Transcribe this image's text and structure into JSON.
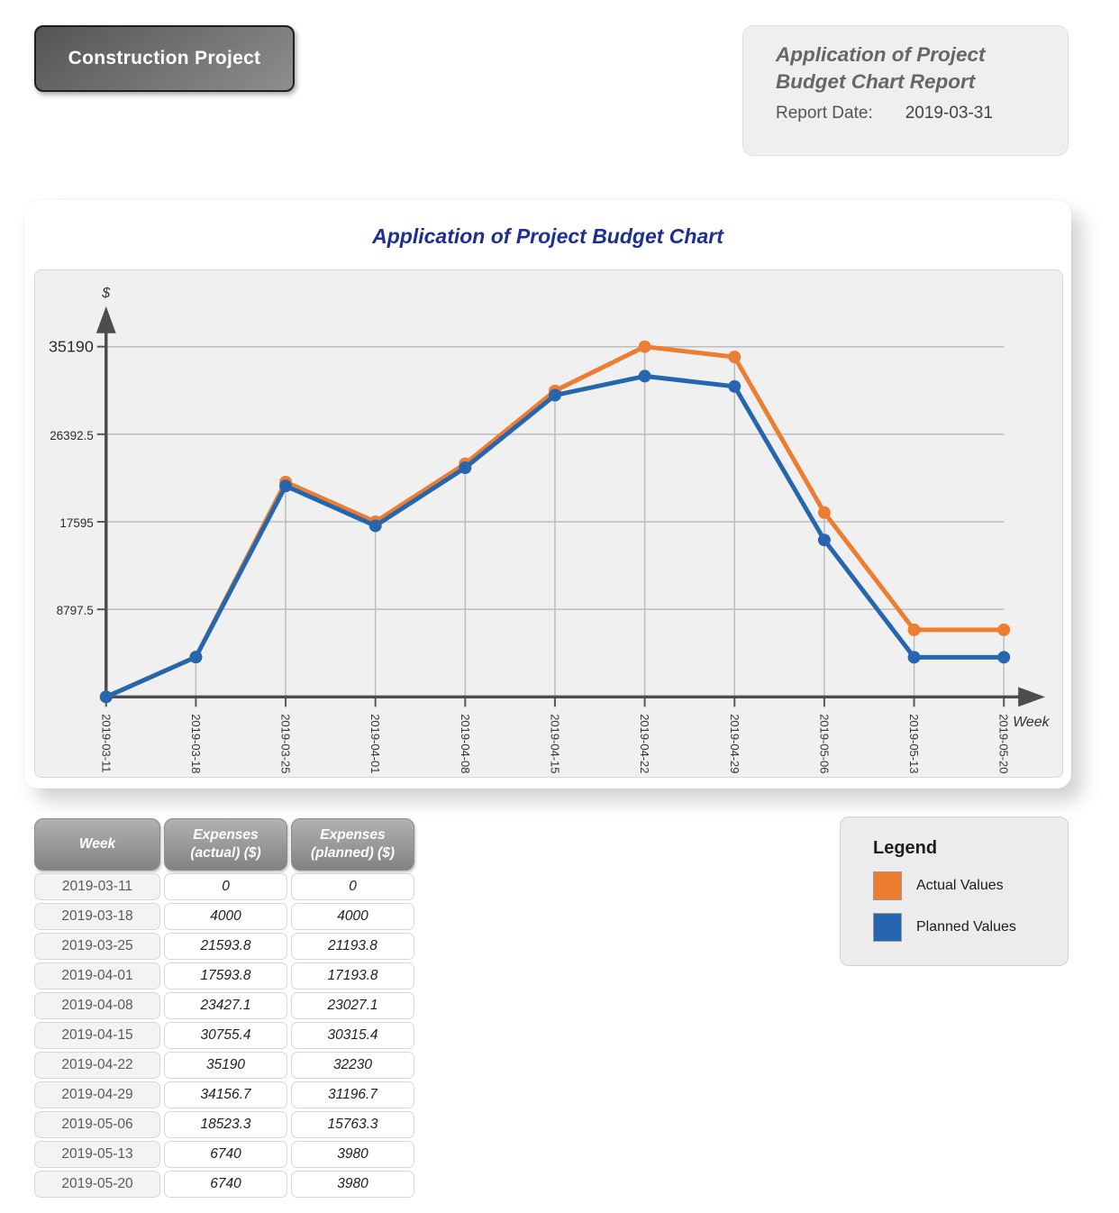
{
  "header": {
    "project_button": "Construction Project",
    "report_title": "Application of Project Budget Chart Report",
    "report_date_label": "Report Date:",
    "report_date": "2019-03-31"
  },
  "chart": {
    "title": "Application of Project Budget Chart",
    "y_axis_label": "$",
    "x_axis_label": "Week"
  },
  "chart_data": {
    "type": "line",
    "title": "Application of Project Budget Chart",
    "xlabel": "Week",
    "ylabel": "$",
    "x": [
      "2019-03-11",
      "2019-03-18",
      "2019-03-25",
      "2019-04-01",
      "2019-04-08",
      "2019-04-15",
      "2019-04-22",
      "2019-04-29",
      "2019-05-06",
      "2019-05-13",
      "2019-05-20"
    ],
    "series": [
      {
        "name": "Actual Values",
        "color": "#ED7D31",
        "values": [
          0,
          4000,
          21593.8,
          17593.8,
          23427.1,
          30755.4,
          35190,
          34156.7,
          18523.3,
          6740,
          6740
        ]
      },
      {
        "name": "Planned Values",
        "color": "#2566AF",
        "values": [
          0,
          4000,
          21193.8,
          17193.8,
          23027.1,
          30315.4,
          32230,
          31196.7,
          15763.3,
          3980,
          3980
        ]
      }
    ],
    "ylim": [
      0,
      35190
    ],
    "yticks": [
      8797.5,
      17595,
      26392.5,
      35190
    ],
    "grid": "horizontal gridlines with vertical drop lines from points to x-axis",
    "marker": "circle",
    "legend_position": "separate legend box below chart"
  },
  "table": {
    "columns": [
      "Week",
      "Expenses\n(actual) ($)",
      "Expenses\n(planned) ($)"
    ],
    "rows": [
      [
        "2019-03-11",
        "0",
        "0"
      ],
      [
        "2019-03-18",
        "4000",
        "4000"
      ],
      [
        "2019-03-25",
        "21593.8",
        "21193.8"
      ],
      [
        "2019-04-01",
        "17593.8",
        "17193.8"
      ],
      [
        "2019-04-08",
        "23427.1",
        "23027.1"
      ],
      [
        "2019-04-15",
        "30755.4",
        "30315.4"
      ],
      [
        "2019-04-22",
        "35190",
        "32230"
      ],
      [
        "2019-04-29",
        "34156.7",
        "31196.7"
      ],
      [
        "2019-05-06",
        "18523.3",
        "15763.3"
      ],
      [
        "2019-05-13",
        "6740",
        "3980"
      ],
      [
        "2019-05-20",
        "6740",
        "3980"
      ]
    ]
  },
  "legend": {
    "title": "Legend",
    "items": [
      {
        "label": "Actual Values",
        "color": "#ED7D31"
      },
      {
        "label": "Planned Values",
        "color": "#2566AF"
      }
    ]
  },
  "colors": {
    "actual": "#ED7D31",
    "planned": "#2566AF",
    "chart_title": "#1b2f96",
    "axis": "#4d4d4d",
    "gridline": "#bdbdbd"
  }
}
